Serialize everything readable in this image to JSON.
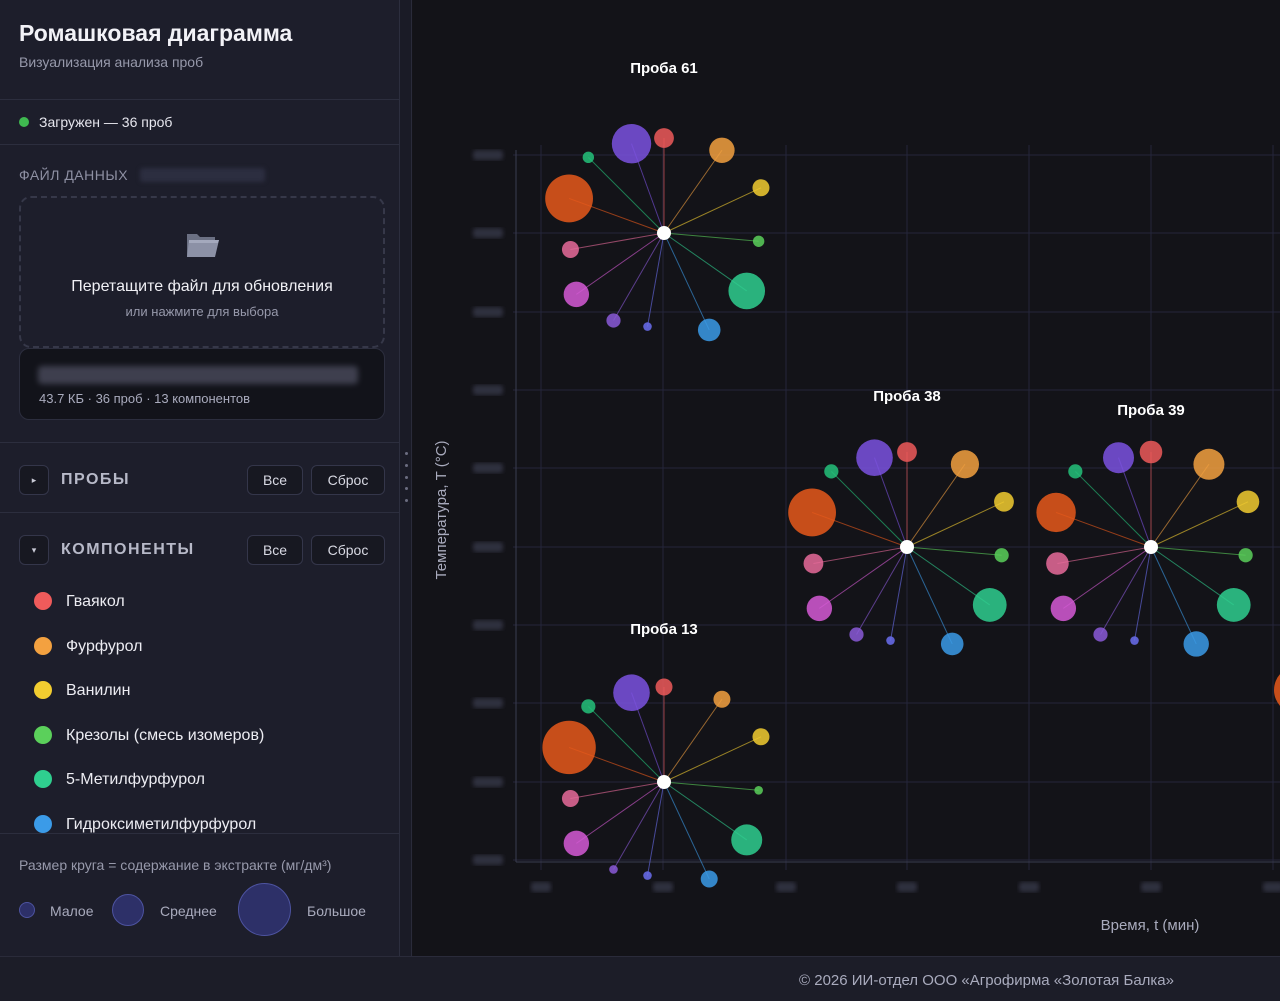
{
  "header": {
    "title": "Ромашковая диаграмма",
    "subtitle": "Визуализация анализа проб"
  },
  "status": {
    "text": "Загружен — 36 проб",
    "color": "#3fb950"
  },
  "file": {
    "section_label": "ФАЙЛ ДАННЫХ",
    "drop_title": "Перетащите файл для обновления",
    "drop_subtitle": "или нажмите для выбора",
    "meta": "43.7 КБ · 36 проб · 13 компонентов",
    "icon": "folder-icon"
  },
  "samples_section": {
    "title": "ПРОБЫ",
    "all_label": "Все",
    "reset_label": "Сброс",
    "toggle_icon": "▸"
  },
  "components_section": {
    "title": "КОМПОНЕНТЫ",
    "all_label": "Все",
    "reset_label": "Сброс",
    "toggle_icon": "▾"
  },
  "components": [
    {
      "label": "Гваякол",
      "color": "#ef5b5b"
    },
    {
      "label": "Фурфурол",
      "color": "#f3a140"
    },
    {
      "label": "Ванилин",
      "color": "#f2cd30"
    },
    {
      "label": "Крезолы (смесь изомеров)",
      "color": "#5bd05b"
    },
    {
      "label": "5-Метилфурфурол",
      "color": "#2fcf8f"
    },
    {
      "label": "Гидроксиметилфурфурол",
      "color": "#3b9be8"
    }
  ],
  "size_legend": {
    "title": "Размер круга = содержание в экстракте (мг/дм³)",
    "small": "Малое",
    "medium": "Среднее",
    "large": "Большое"
  },
  "chart_data": {
    "type": "scatter",
    "xlabel": "Время, t (мин)",
    "ylabel": "Температура, T (°C)",
    "grid": true,
    "petal_colors": [
      "#ef5b5b",
      "#f3a140",
      "#f2cd30",
      "#5bd05b",
      "#2fcf8f",
      "#3b9be8",
      "#6b6ff0",
      "#6f72e6",
      "#8b5ad8",
      "#d65bd6",
      "#e86b9a",
      "#e8591b",
      "#25c27a",
      "#7b52e0"
    ],
    "flowers": [
      {
        "label": "Проба 61",
        "petals": [
          6,
          8,
          5,
          3,
          12,
          7,
          2,
          4,
          8,
          5,
          16,
          3,
          13
        ]
      },
      {
        "label": "Проба 38",
        "petals": [
          6,
          9,
          6,
          4,
          11,
          7,
          2,
          4,
          8,
          6,
          16,
          4,
          12
        ]
      },
      {
        "label": "Проба 39",
        "petals": [
          7,
          10,
          7,
          4,
          11,
          8,
          2,
          4,
          8,
          7,
          13,
          4,
          10
        ]
      },
      {
        "label": "Проба 13",
        "petals": [
          5,
          5,
          5,
          2,
          10,
          5,
          2,
          2,
          8,
          5,
          18,
          4,
          12
        ]
      }
    ]
  },
  "footer": {
    "text": "© 2026 ИИ-отдел ООО «Агрофирма «Золотая Балка»"
  }
}
